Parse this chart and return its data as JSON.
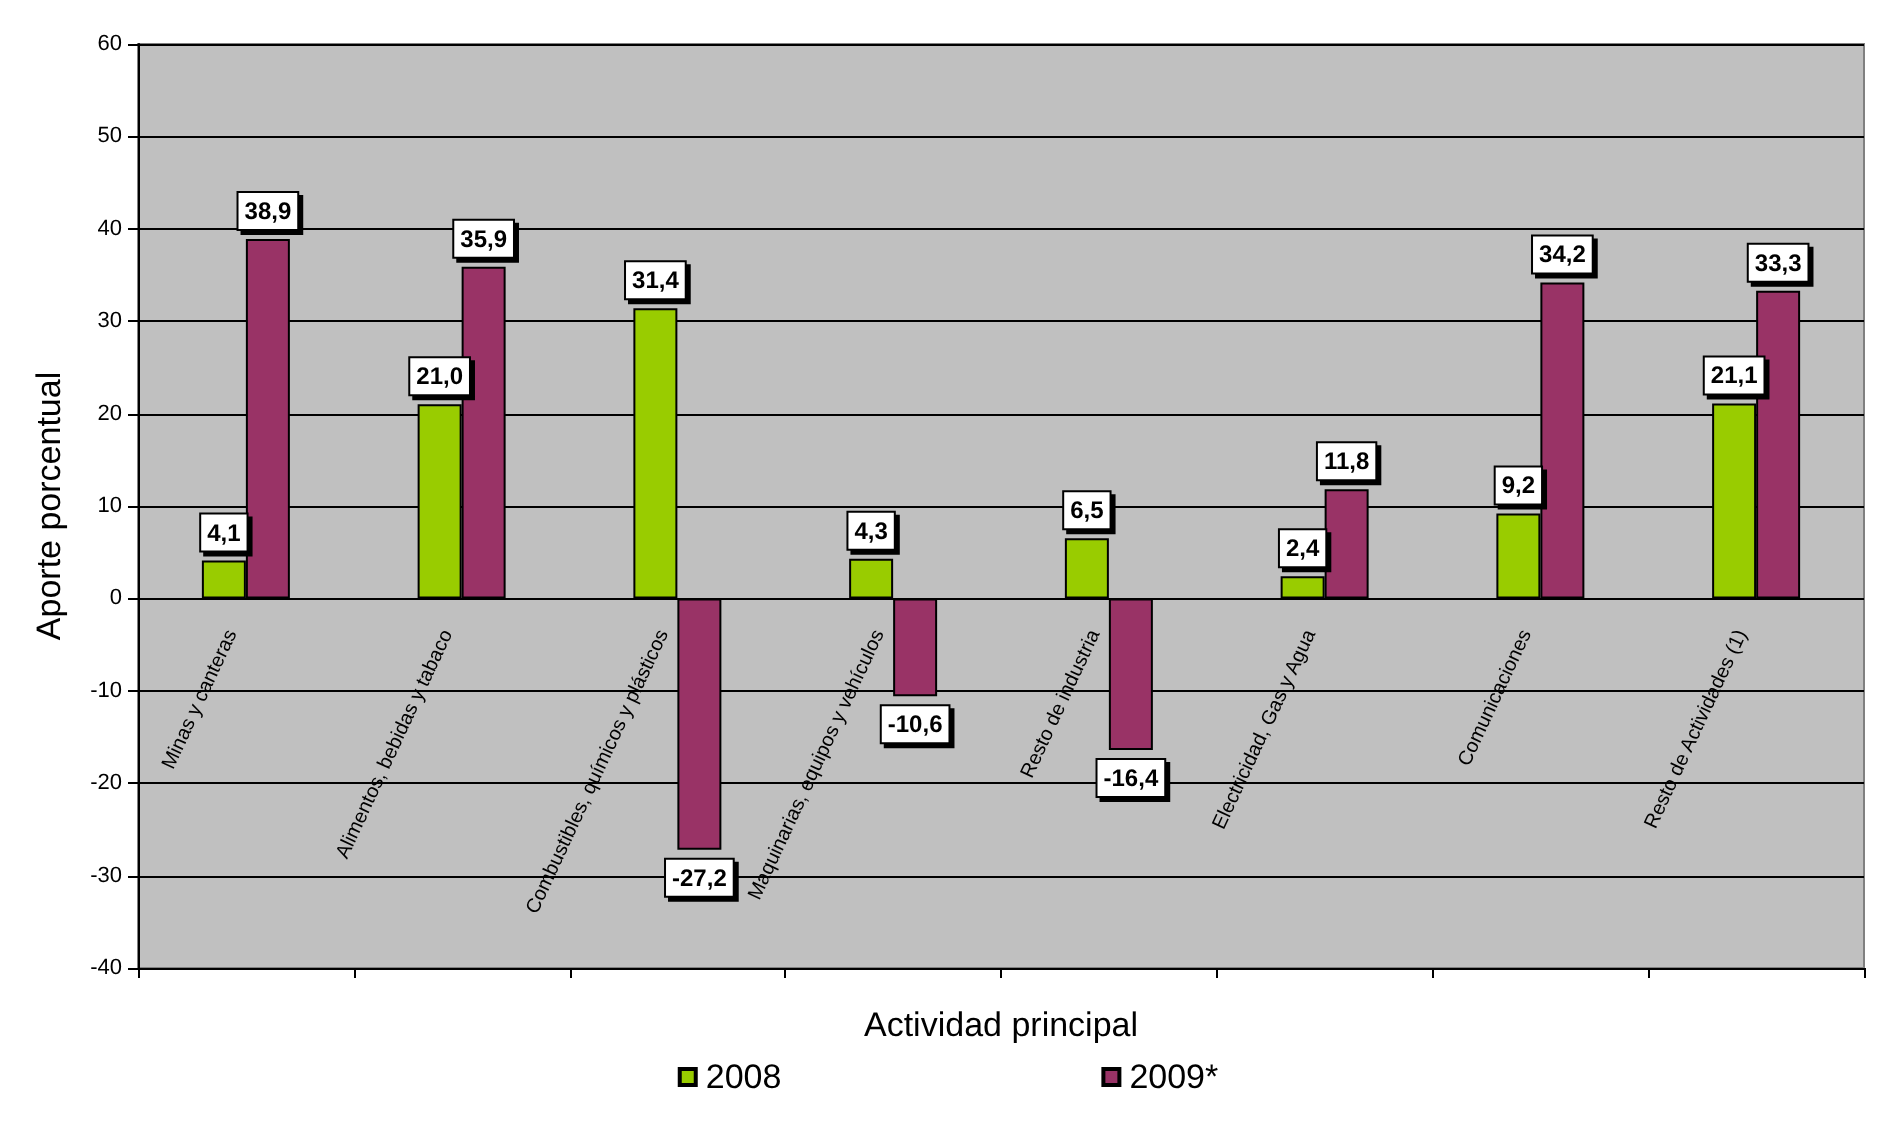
{
  "chart_data": {
    "type": "bar",
    "xlabel": "Actividad principal",
    "ylabel": "Aporte porcentual",
    "categories": [
      "Minas y canteras",
      "Alimentos, bebidas y tabaco",
      "Combustibles, químicos y plásticos",
      "Maquinarias, equipos y vehículos",
      "Resto de industria",
      "Electricidad, Gas y Agua",
      "Comunicaciones",
      "Resto de Actividades (1)"
    ],
    "series": [
      {
        "name": "2008",
        "color": "#99cc00",
        "values": [
          4.1,
          21.0,
          31.4,
          4.3,
          6.5,
          2.4,
          9.2,
          21.1
        ],
        "value_labels": [
          "4,1",
          "21,0",
          "31,4",
          "4,3",
          "6,5",
          "2,4",
          "9,2",
          "21,1"
        ]
      },
      {
        "name": "2009*",
        "color": "#993366",
        "values": [
          38.9,
          35.9,
          -27.2,
          -10.6,
          -16.4,
          11.8,
          34.2,
          33.3
        ],
        "value_labels": [
          "38,9",
          "35,9",
          "-27,2",
          "-10,6",
          "-16,4",
          "11,8",
          "34,2",
          "33,3"
        ]
      }
    ],
    "ylim": [
      -40,
      60
    ],
    "yticks": [
      -40,
      -30,
      -20,
      -10,
      0,
      10,
      20,
      30,
      40,
      50,
      60
    ],
    "grid": "y",
    "legend": "bottom"
  }
}
